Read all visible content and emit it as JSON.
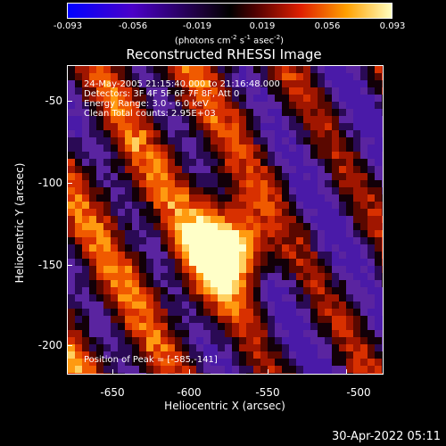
{
  "colorbar": {
    "ticks": [
      "-0.093",
      "-0.056",
      "-0.019",
      "0.019",
      "0.056",
      "0.093"
    ],
    "units_prefix": "(photons cm",
    "units_exp1": "-2",
    "units_mid": " s",
    "units_exp2": "-1",
    "units_mid2": " asec",
    "units_exp3": "-2",
    "units_suffix": ")"
  },
  "title": "Reconstructed RHESSI Image",
  "annotations": {
    "time": "24-May-2005 21:15:40.000 to 21:16:48.000",
    "detectors": "Detectors: 3F 4F 5F 6F 7F 8F, Att 0",
    "energy": "Energy Range: 3.0 - 6.0 keV",
    "clean": "Clean    Total counts: 2.95E+03",
    "peak": "Position of Peak = [-585,-141]"
  },
  "axes": {
    "xlabel": "Heliocentric X (arcsec)",
    "ylabel": "Heliocentric Y (arcsec)",
    "xticks": [
      "-650",
      "-600",
      "-550",
      "-500"
    ],
    "yticks": [
      "-50",
      "-100",
      "-150",
      "-200"
    ]
  },
  "timestamp": "30-Apr-2022 05:11",
  "colors": {
    "background": "#000000",
    "foreground": "#ffffff"
  }
}
